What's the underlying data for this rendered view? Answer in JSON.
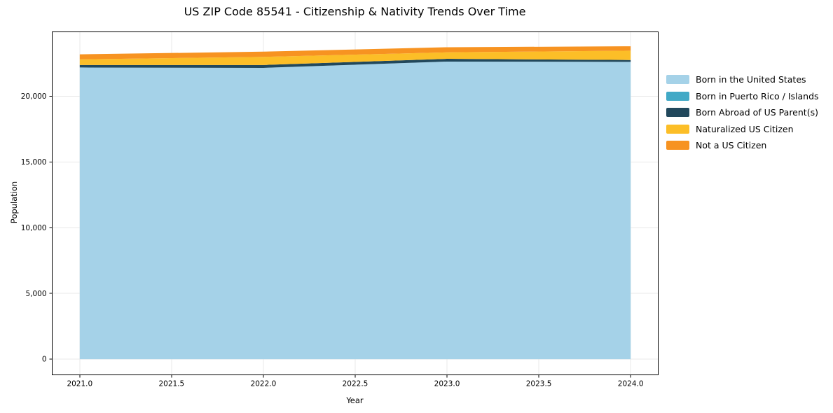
{
  "chart_data": {
    "type": "area",
    "stacked": true,
    "title": "US ZIP Code 85541 - Citizenship & Nativity Trends Over Time",
    "xlabel": "Year",
    "ylabel": "Population",
    "x": [
      2021,
      2022,
      2023,
      2024
    ],
    "series": [
      {
        "name": "Born in the United States",
        "color": "#A5D2E8",
        "values": [
          22180,
          22150,
          22630,
          22610
        ]
      },
      {
        "name": "Born in Puerto Rico / Islands",
        "color": "#41A9C6",
        "values": [
          0,
          0,
          0,
          0
        ]
      },
      {
        "name": "Born Abroad of US Parent(s)",
        "color": "#21485C",
        "values": [
          190,
          220,
          210,
          140
        ]
      },
      {
        "name": "Naturalized US Citizen",
        "color": "#FCBE27",
        "values": [
          430,
          620,
          490,
          710
        ]
      },
      {
        "name": "Not a US Citizen",
        "color": "#F79321",
        "values": [
          380,
          395,
          390,
          335
        ]
      }
    ],
    "xlim": [
      2020.85,
      2024.15
    ],
    "ylim": [
      -1190,
      24890
    ],
    "xticks": {
      "values": [
        2021.0,
        2021.5,
        2022.0,
        2022.5,
        2023.0,
        2023.5,
        2024.0
      ],
      "labels": [
        "2021.0",
        "2021.5",
        "2022.0",
        "2022.5",
        "2023.0",
        "2023.5",
        "2024.0"
      ]
    },
    "yticks": {
      "values": [
        0,
        5000,
        10000,
        15000,
        20000
      ],
      "labels": [
        "0",
        "5,000",
        "10,000",
        "15,000",
        "20,000"
      ]
    },
    "grid": true,
    "grid_color": "#E8E8E8",
    "spine_color": "#000000",
    "legend_position": "right-outside"
  }
}
